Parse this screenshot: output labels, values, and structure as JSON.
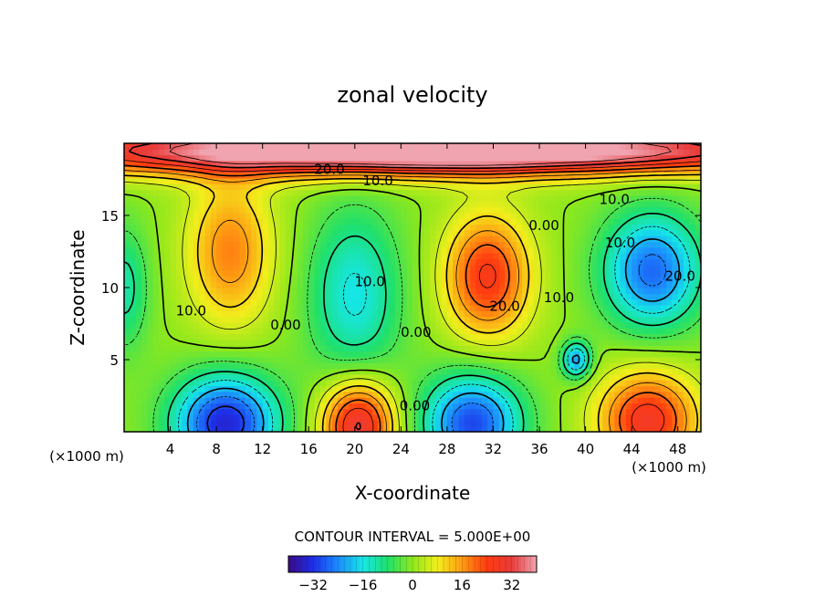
{
  "chart_data": {
    "type": "heatmap",
    "subtype": "filled-contour",
    "title": "zonal velocity",
    "xlabel": "X-coordinate",
    "ylabel": "Z-coordinate",
    "x_unit_left": "(×1000 m)",
    "x_unit_right": "(×1000 m)",
    "xlim": [
      0,
      50
    ],
    "ylim": [
      0,
      20
    ],
    "x_ticks": [
      4,
      8,
      12,
      16,
      20,
      24,
      28,
      32,
      36,
      40,
      44,
      48
    ],
    "y_ticks": [
      5,
      10,
      15
    ],
    "contour_interval_text": "CONTOUR INTERVAL = 5.000E+00",
    "colorbar": {
      "range": [
        -40,
        40
      ],
      "ticks": [
        -32,
        -16,
        0,
        16,
        32
      ],
      "colors": [
        "#3a0a8a",
        "#1e2fe8",
        "#1c8cff",
        "#16e6e6",
        "#1fe06c",
        "#8ee81c",
        "#f2ee1c",
        "#ff9a12",
        "#ff3b10",
        "#e83c3c",
        "#f0a4b0"
      ]
    },
    "contour_labels": [
      {
        "text": "20.0",
        "x": 17.8,
        "y": 18.2
      },
      {
        "text": "10.0",
        "x": 22.0,
        "y": 17.4
      },
      {
        "text": "10.0",
        "x": 42.5,
        "y": 16.1
      },
      {
        "text": "0.00",
        "x": 36.4,
        "y": 14.3
      },
      {
        "text": "10.0",
        "x": 43.0,
        "y": 13.1
      },
      {
        "text": "20.0",
        "x": 48.2,
        "y": 10.8
      },
      {
        "text": "10.0",
        "x": 21.3,
        "y": 10.4
      },
      {
        "text": "10.0",
        "x": 37.7,
        "y": 9.3
      },
      {
        "text": "20.0",
        "x": 33.0,
        "y": 8.7
      },
      {
        "text": "10.0",
        "x": 5.8,
        "y": 8.4
      },
      {
        "text": "0.00",
        "x": 14.0,
        "y": 7.4
      },
      {
        "text": "0.00",
        "x": 25.3,
        "y": 6.9
      },
      {
        "text": "0.00",
        "x": 25.2,
        "y": 1.8
      }
    ],
    "features": [
      {
        "x": 9.2,
        "y": 12.5,
        "value": 18,
        "sx": 2.6,
        "sy": 3.6
      },
      {
        "x": 20.0,
        "y": 9.5,
        "value": -16,
        "sx": 2.8,
        "sy": 4.2
      },
      {
        "x": 31.5,
        "y": 10.8,
        "value": 26,
        "sx": 2.6,
        "sy": 3.0
      },
      {
        "x": 45.8,
        "y": 11.2,
        "value": -27,
        "sx": 3.0,
        "sy": 2.8
      },
      {
        "x": 8.8,
        "y": 0.6,
        "value": -34,
        "sx": 3.2,
        "sy": 2.4
      },
      {
        "x": 20.3,
        "y": 0.5,
        "value": 32,
        "sx": 2.2,
        "sy": 2.2
      },
      {
        "x": 30.2,
        "y": 0.6,
        "value": -30,
        "sx": 3.0,
        "sy": 2.4
      },
      {
        "x": 45.4,
        "y": 0.8,
        "value": 28,
        "sx": 3.0,
        "sy": 2.4
      },
      {
        "x": 39.2,
        "y": 5.0,
        "value": -22,
        "sx": 0.9,
        "sy": 0.9
      },
      {
        "x": 0.0,
        "y": 10.0,
        "value": -12,
        "sx": 1.5,
        "sy": 3.0
      },
      {
        "x": 15.0,
        "y": 19.5,
        "value": 36,
        "sx": 20.0,
        "sy": 1.2
      },
      {
        "x": 40.0,
        "y": 19.5,
        "value": 28,
        "sx": 18.0,
        "sy": 1.1
      }
    ]
  }
}
